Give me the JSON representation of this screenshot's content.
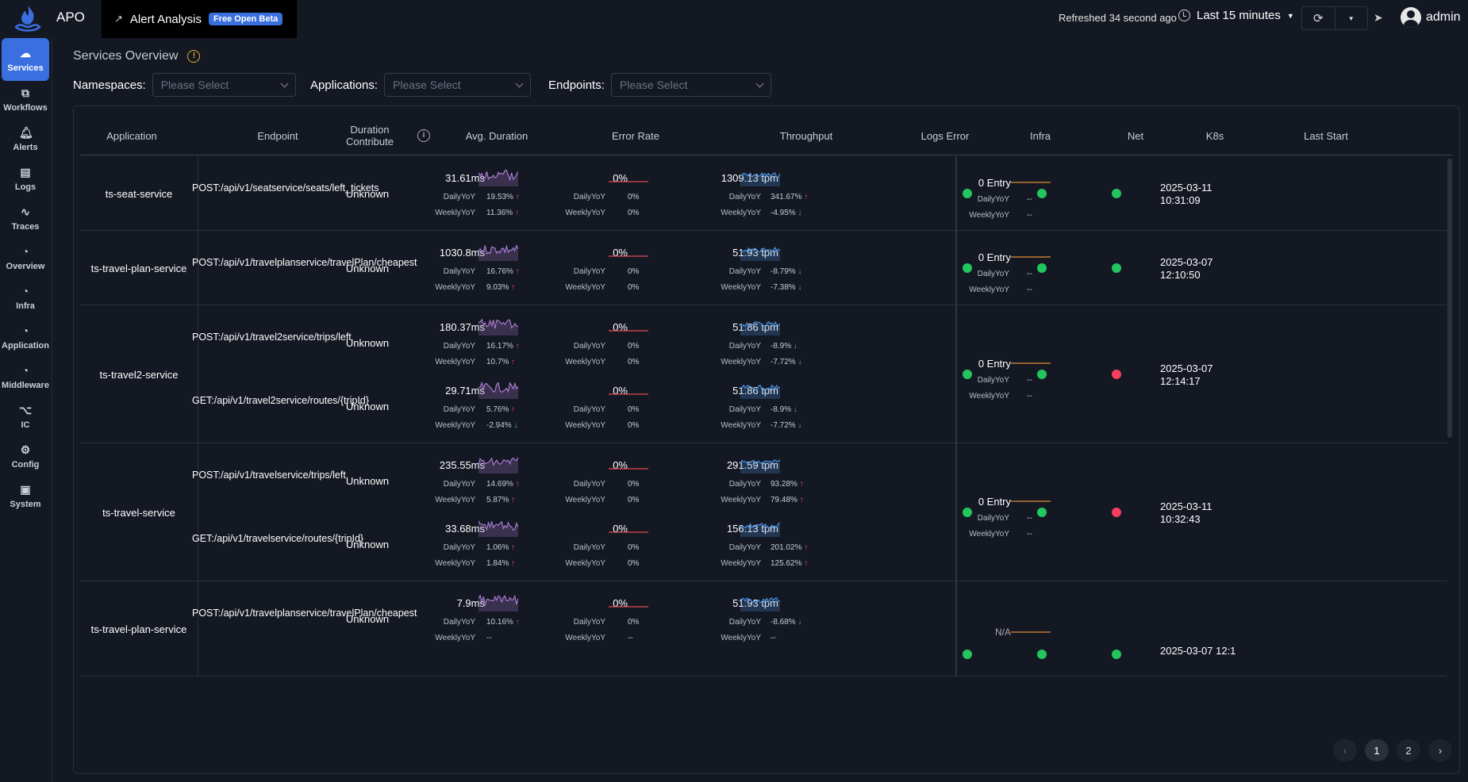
{
  "app": {
    "name": "APO"
  },
  "alert_tab": {
    "label": "Alert Analysis",
    "badge": "Free Open Beta"
  },
  "header": {
    "refreshed": "Refreshed 34 second ago",
    "time_range": "Last 15 minutes",
    "user": "admin"
  },
  "sidebar": {
    "items": [
      {
        "label": "Services",
        "icon": "cloud-icon"
      },
      {
        "label": "Workflows",
        "icon": "workflow-icon"
      },
      {
        "label": "Alerts",
        "icon": "bell-icon"
      },
      {
        "label": "Logs",
        "icon": "document-icon"
      },
      {
        "label": "Traces",
        "icon": "trace-icon"
      },
      {
        "label": "Overview",
        "icon": "gauge-icon"
      },
      {
        "label": "Infra",
        "icon": "gauge-icon"
      },
      {
        "label": "Application",
        "icon": "gauge-icon"
      },
      {
        "label": "Middleware",
        "icon": "gauge-icon"
      },
      {
        "label": "IC",
        "icon": "ic-icon"
      },
      {
        "label": "Config",
        "icon": "gear-icon"
      },
      {
        "label": "System",
        "icon": "monitor-icon"
      }
    ]
  },
  "page": {
    "title": "Services Overview"
  },
  "filters": {
    "namespaces": {
      "label": "Namespaces:",
      "placeholder": "Please Select"
    },
    "applications": {
      "label": "Applications:",
      "placeholder": "Please Select"
    },
    "endpoints": {
      "label": "Endpoints:",
      "placeholder": "Please Select"
    }
  },
  "table": {
    "columns": [
      "Application",
      "Endpoint",
      "Duration Contribute",
      "Avg. Duration",
      "Error Rate",
      "Throughput",
      "Logs Error",
      "Infra",
      "Net",
      "K8s",
      "Last Start"
    ],
    "labels": {
      "daily": "DailyYoY",
      "weekly": "WeeklyYoY"
    },
    "colors": {
      "duration_line": "#a77bd0",
      "throughput_line": "#4a8fe0",
      "error_line": "#e04a5a",
      "logs_line": "#e08a3a",
      "ok": "#22c55e",
      "bad": "#f43f5e"
    },
    "groups": [
      {
        "application": "ts-seat-service",
        "logs": {
          "value": "0 Entry",
          "daily": "--",
          "weekly": "--"
        },
        "infra": "ok",
        "net": "ok",
        "k8s": "ok",
        "last_start": "2025-03-11 10:31:09",
        "endpoints": [
          {
            "endpoint": "POST:/api/v1/seatservice/seats/left_tickets",
            "contribution": "Unknown",
            "duration": {
              "value": "31.61ms",
              "daily": "19.53%",
              "daily_dir": "up",
              "weekly": "11.36%",
              "weekly_dir": "up"
            },
            "error": {
              "value": "0%",
              "daily": "0%",
              "weekly": "0%"
            },
            "throughput": {
              "value": "1309.13 tpm",
              "daily": "341.67%",
              "daily_dir": "up",
              "weekly": "-4.95%",
              "weekly_dir": "down"
            }
          }
        ]
      },
      {
        "application": "ts-travel-plan-service",
        "logs": {
          "value": "0 Entry",
          "daily": "--",
          "weekly": "--"
        },
        "infra": "ok",
        "net": "ok",
        "k8s": "ok",
        "last_start": "2025-03-07 12:10:50",
        "endpoints": [
          {
            "endpoint": "POST:/api/v1/travelplanservice/travelPlan/cheapest",
            "contribution": "Unknown",
            "duration": {
              "value": "1030.8ms",
              "daily": "16.76%",
              "daily_dir": "up",
              "weekly": "9.03%",
              "weekly_dir": "up"
            },
            "error": {
              "value": "0%",
              "daily": "0%",
              "weekly": "0%"
            },
            "throughput": {
              "value": "51.93 tpm",
              "daily": "-8.79%",
              "daily_dir": "down",
              "weekly": "-7.38%",
              "weekly_dir": "down"
            }
          }
        ]
      },
      {
        "application": "ts-travel2-service",
        "logs": {
          "value": "0 Entry",
          "daily": "--",
          "weekly": "--"
        },
        "infra": "ok",
        "net": "ok",
        "k8s": "bad",
        "last_start": "2025-03-07 12:14:17",
        "endpoints": [
          {
            "endpoint": "POST:/api/v1/travel2service/trips/left",
            "contribution": "Unknown",
            "duration": {
              "value": "180.37ms",
              "daily": "16.17%",
              "daily_dir": "up",
              "weekly": "10.7%",
              "weekly_dir": "up"
            },
            "error": {
              "value": "0%",
              "daily": "0%",
              "weekly": "0%"
            },
            "throughput": {
              "value": "51.86 tpm",
              "daily": "-8.9%",
              "daily_dir": "down",
              "weekly": "-7.72%",
              "weekly_dir": "down"
            }
          },
          {
            "endpoint": "GET:/api/v1/travel2service/routes/{tripId}",
            "contribution": "Unknown",
            "duration": {
              "value": "29.71ms",
              "daily": "5.76%",
              "daily_dir": "up",
              "weekly": "-2.94%",
              "weekly_dir": "down"
            },
            "error": {
              "value": "0%",
              "daily": "0%",
              "weekly": "0%"
            },
            "throughput": {
              "value": "51.86 tpm",
              "daily": "-8.9%",
              "daily_dir": "down",
              "weekly": "-7.72%",
              "weekly_dir": "down"
            }
          }
        ]
      },
      {
        "application": "ts-travel-service",
        "logs": {
          "value": "0 Entry",
          "daily": "--",
          "weekly": "--"
        },
        "infra": "ok",
        "net": "ok",
        "k8s": "bad",
        "last_start": "2025-03-11 10:32:43",
        "endpoints": [
          {
            "endpoint": "POST:/api/v1/travelservice/trips/left",
            "contribution": "Unknown",
            "duration": {
              "value": "235.55ms",
              "daily": "14.69%",
              "daily_dir": "up",
              "weekly": "5.87%",
              "weekly_dir": "up"
            },
            "error": {
              "value": "0%",
              "daily": "0%",
              "weekly": "0%"
            },
            "throughput": {
              "value": "291.59 tpm",
              "daily": "93.28%",
              "daily_dir": "up",
              "weekly": "79.48%",
              "weekly_dir": "up"
            }
          },
          {
            "endpoint": "GET:/api/v1/travelservice/routes/{tripId}",
            "contribution": "Unknown",
            "duration": {
              "value": "33.68ms",
              "daily": "1.06%",
              "daily_dir": "up",
              "weekly": "1.84%",
              "weekly_dir": "up"
            },
            "error": {
              "value": "0%",
              "daily": "0%",
              "weekly": "0%"
            },
            "throughput": {
              "value": "156.13 tpm",
              "daily": "201.02%",
              "daily_dir": "up",
              "weekly": "125.62%",
              "weekly_dir": "up"
            }
          }
        ]
      },
      {
        "application": "ts-travel-plan-service",
        "logs": {
          "value": "N/A",
          "daily": "",
          "weekly": ""
        },
        "infra": "ok",
        "net": "ok",
        "k8s": "ok",
        "last_start": "2025-03-07 12:1",
        "endpoints": [
          {
            "endpoint": "POST:/api/v1/travelplanservice/travelPlan/cheapest",
            "contribution": "Unknown",
            "duration": {
              "value": "7.9ms",
              "daily": "10.16%",
              "daily_dir": "up",
              "weekly": "--",
              "weekly_dir": ""
            },
            "error": {
              "value": "0%",
              "daily": "0%",
              "weekly": "--"
            },
            "throughput": {
              "value": "51.93 tpm",
              "daily": "-8.68%",
              "daily_dir": "down",
              "weekly": "--",
              "weekly_dir": ""
            }
          }
        ]
      }
    ]
  },
  "pagination": {
    "pages": [
      "1",
      "2"
    ],
    "current": "1"
  }
}
